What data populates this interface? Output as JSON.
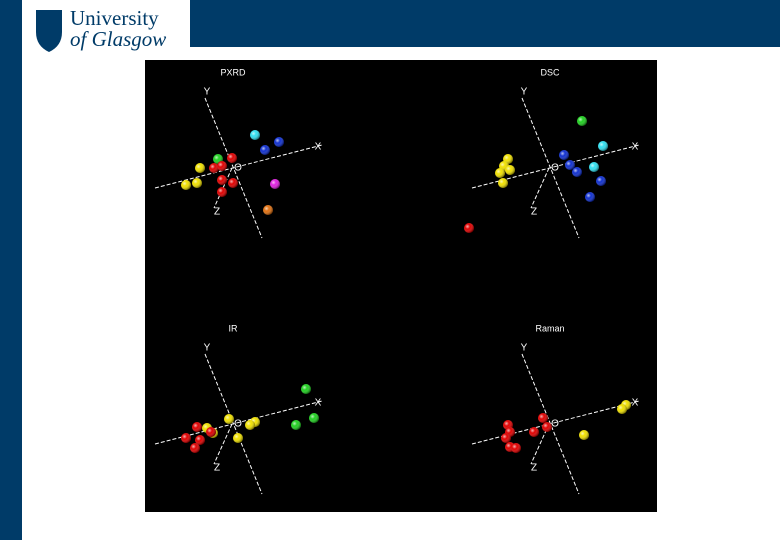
{
  "header": {
    "logo": {
      "line1": "University",
      "line2": "of Glasgow"
    }
  },
  "panels": [
    {
      "title": "PXRD",
      "axes": [
        "X",
        "Y",
        "Z",
        "O"
      ]
    },
    {
      "title": "DSC",
      "axes": [
        "X",
        "Y",
        "Z",
        "O"
      ]
    },
    {
      "title": "IR",
      "axes": [
        "X",
        "Y",
        "Z",
        "O"
      ]
    },
    {
      "title": "Raman",
      "axes": [
        "X",
        "Y",
        "Z",
        "O"
      ]
    }
  ]
}
